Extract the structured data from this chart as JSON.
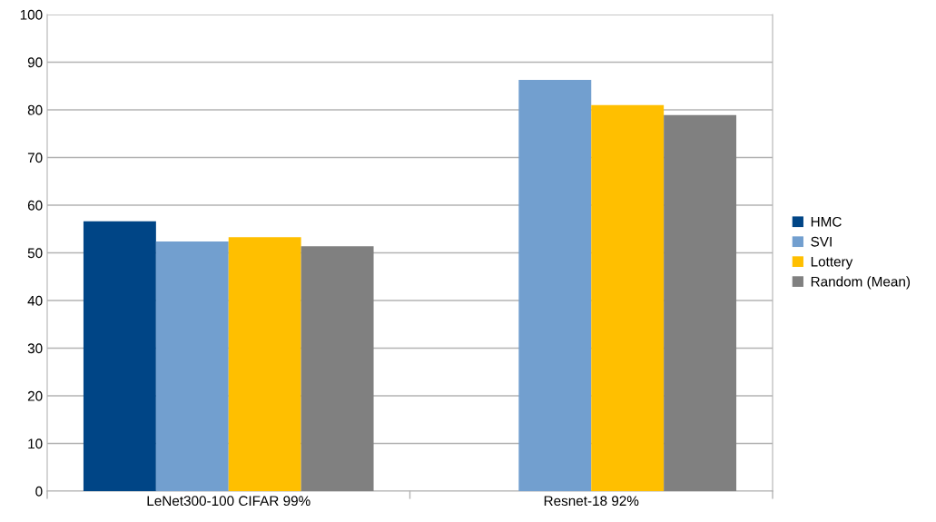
{
  "chart_data": {
    "type": "bar",
    "categories": [
      "LeNet300-100 CIFAR 99%",
      "Resnet-18 92%"
    ],
    "series": [
      {
        "name": "HMC",
        "color": "#004586",
        "values": [
          56.6,
          null
        ]
      },
      {
        "name": "SVI",
        "color": "#729fcf",
        "values": [
          52.4,
          86.3
        ]
      },
      {
        "name": "Lottery",
        "color": "#ffbf00",
        "values": [
          53.3,
          81.0
        ]
      },
      {
        "name": "Random (Mean)",
        "color": "#808080",
        "values": [
          51.4,
          78.9
        ]
      }
    ],
    "ylim": [
      0,
      100
    ],
    "yticks": [
      0,
      10,
      20,
      30,
      40,
      50,
      60,
      70,
      80,
      90,
      100
    ],
    "grid": "y",
    "legend": "right"
  }
}
